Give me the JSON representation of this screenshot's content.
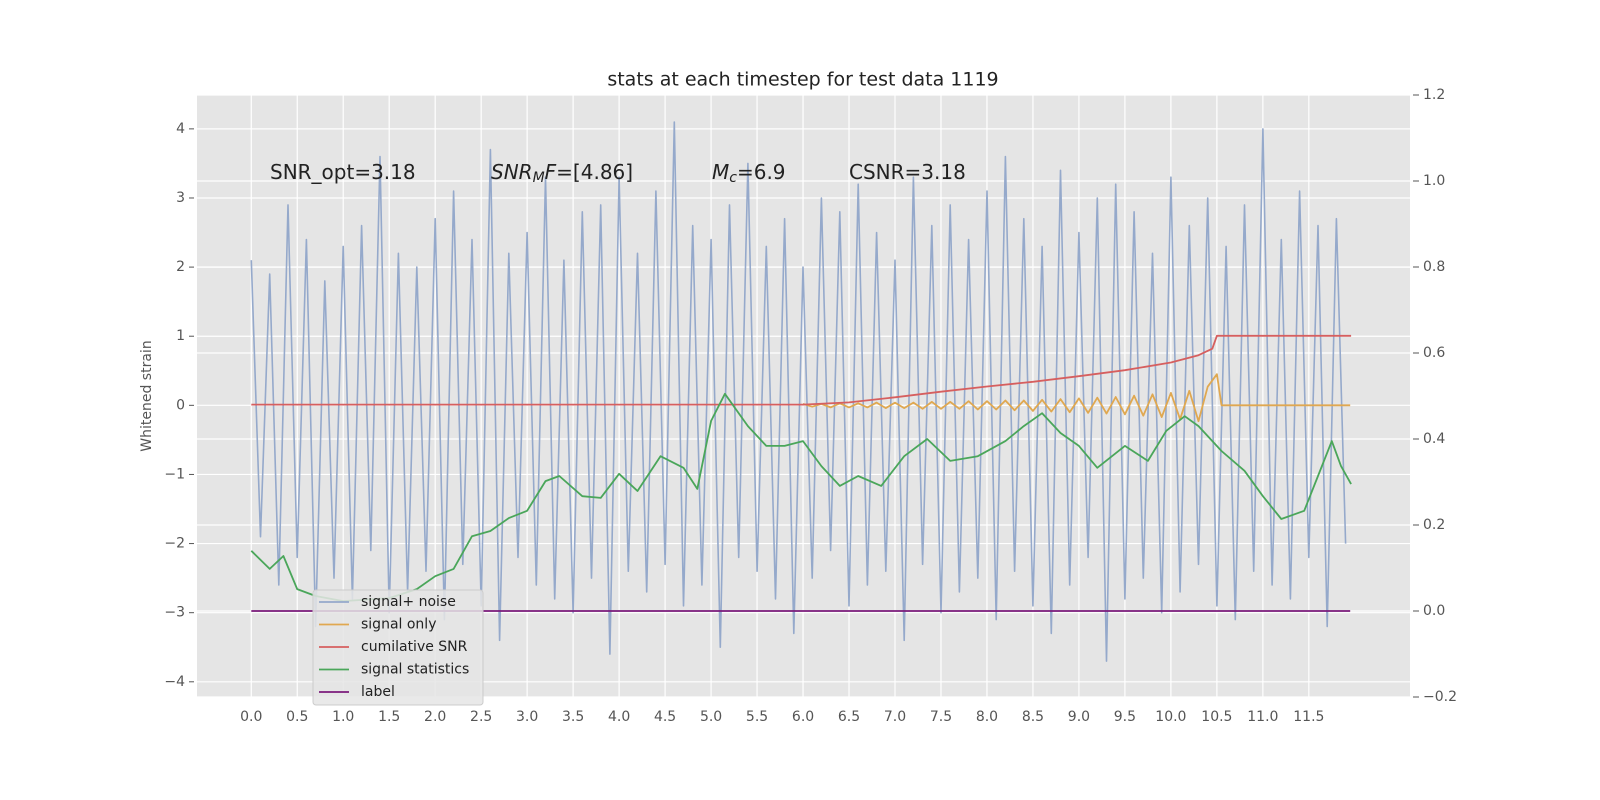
{
  "chart_data": {
    "type": "line",
    "title": "stats at each timestep for test data 1119",
    "ylabel": "Whitened strain",
    "xlim": [
      -0.59,
      12.6
    ],
    "ylim": [
      -4.22,
      4.49
    ],
    "y2lim": [
      -0.2,
      1.2
    ],
    "grid": true,
    "legend": "lower left",
    "xticks": [
      {
        "value": 0,
        "label": "0.0"
      },
      0.5,
      {
        "value": 1,
        "label": "1.0"
      },
      1.5,
      {
        "value": 2,
        "label": "2.0"
      },
      2.5,
      {
        "value": 3,
        "label": "3.0"
      },
      3.5,
      {
        "value": 4,
        "label": "4.0"
      },
      4.5,
      {
        "value": 5,
        "label": "5.0"
      },
      5.5,
      {
        "value": 6,
        "label": "6.0"
      },
      6.5,
      {
        "value": 7,
        "label": "7.0"
      },
      7.5,
      {
        "value": 8,
        "label": "8.0"
      },
      8.5,
      {
        "value": 9,
        "label": "9.0"
      },
      9.5,
      {
        "value": 10,
        "label": "10.0"
      },
      10.5,
      {
        "value": 11,
        "label": "11.0"
      },
      11.5
    ],
    "yticks": [
      {
        "value": -4,
        "label": "−4"
      },
      {
        "value": -3,
        "label": "−3"
      },
      {
        "value": -2,
        "label": "−2"
      },
      {
        "value": -1,
        "label": "−1"
      },
      0,
      1,
      2,
      3,
      4
    ],
    "y2ticks": [
      {
        "value": -0.2,
        "label": "−0.2"
      },
      {
        "value": 0,
        "label": "0.0"
      },
      0.2,
      0.4,
      0.6,
      0.8,
      {
        "value": 1,
        "label": "1.0"
      },
      1.2
    ],
    "annotations": [
      [
        {
          "text": "SNR_opt=3.18",
          "style": "normal"
        }
      ],
      [
        {
          "text": "SNR",
          "style": "italic"
        },
        {
          "text": "M",
          "style": "sub"
        },
        {
          "text": "F",
          "style": "italic"
        },
        {
          "text": "=[4.86]",
          "style": "normal"
        }
      ],
      [
        {
          "text": "M",
          "style": "italic"
        },
        {
          "text": "c",
          "style": "sub"
        },
        {
          "text": "=6.9",
          "style": "normal"
        }
      ],
      [
        {
          "text": "CSNR=3.18",
          "style": "normal"
        }
      ]
    ],
    "series": [
      {
        "name": "signal+ noise",
        "color": "#95a9cb",
        "axis": "y",
        "x": [
          0,
          0.1,
          0.2,
          0.3,
          0.4,
          0.5,
          0.6,
          0.7,
          0.8,
          0.9,
          1,
          1.1,
          1.2,
          1.3,
          1.4,
          1.5,
          1.6,
          1.7,
          1.8,
          1.9,
          2,
          2.1,
          2.2,
          2.3,
          2.4,
          2.5,
          2.6,
          2.7,
          2.8,
          2.9,
          3,
          3.1,
          3.2,
          3.3,
          3.4,
          3.5,
          3.6,
          3.7,
          3.8,
          3.9,
          4,
          4.1,
          4.2,
          4.3,
          4.4,
          4.5,
          4.6,
          4.7,
          4.8,
          4.9,
          5,
          5.1,
          5.2,
          5.3,
          5.4,
          5.5,
          5.6,
          5.7,
          5.8,
          5.9,
          6,
          6.1,
          6.2,
          6.3,
          6.4,
          6.5,
          6.6,
          6.7,
          6.8,
          6.9,
          7,
          7.1,
          7.2,
          7.3,
          7.4,
          7.5,
          7.6,
          7.7,
          7.8,
          7.9,
          8,
          8.1,
          8.2,
          8.3,
          8.4,
          8.5,
          8.6,
          8.7,
          8.8,
          8.9,
          9,
          9.1,
          9.2,
          9.3,
          9.4,
          9.5,
          9.6,
          9.7,
          9.8,
          9.9,
          10,
          10.1,
          10.2,
          10.3,
          10.4,
          10.5,
          10.6,
          10.7,
          10.8,
          10.9,
          11,
          11.1,
          11.2,
          11.3,
          11.4,
          11.5,
          11.6,
          11.7,
          11.8,
          11.9
        ],
        "values": [
          2.1,
          -1.9,
          1.9,
          -2.6,
          2.9,
          -2.2,
          2.4,
          -3.2,
          1.8,
          -2.5,
          2.3,
          -2.8,
          2.6,
          -2.1,
          3.6,
          -3.0,
          2.2,
          -2.7,
          2.0,
          -2.4,
          2.7,
          -3.1,
          3.1,
          -2.3,
          2.4,
          -2.9,
          3.7,
          -3.4,
          2.2,
          -2.2,
          2.5,
          -2.6,
          3.3,
          -2.8,
          2.1,
          -3.0,
          2.8,
          -2.5,
          2.9,
          -3.6,
          3.3,
          -2.4,
          2.2,
          -2.7,
          3.1,
          -2.3,
          4.1,
          -2.9,
          2.6,
          -2.6,
          2.4,
          -3.5,
          2.9,
          -2.2,
          3.5,
          -2.4,
          2.3,
          -2.8,
          2.7,
          -3.3,
          2.0,
          -2.5,
          3.0,
          -2.1,
          2.8,
          -2.9,
          3.2,
          -2.6,
          2.5,
          -2.4,
          2.1,
          -3.4,
          3.3,
          -2.3,
          2.6,
          -3.0,
          2.9,
          -2.7,
          2.4,
          -2.5,
          3.1,
          -3.1,
          3.6,
          -2.4,
          2.7,
          -2.9,
          2.3,
          -3.3,
          3.4,
          -2.6,
          2.5,
          -2.2,
          3.0,
          -3.7,
          3.2,
          -2.8,
          2.8,
          -2.5,
          2.2,
          -3.0,
          3.3,
          -2.7,
          2.6,
          -2.3,
          3.0,
          -2.9,
          2.3,
          -3.1,
          2.9,
          -2.4,
          4.0,
          -2.6,
          2.4,
          -2.8,
          3.1,
          -2.2,
          2.6,
          -3.2,
          2.7,
          -2.0
        ]
      },
      {
        "name": "signal only",
        "color": "#e0a850",
        "axis": "y",
        "x": [
          6,
          6.1,
          6.2,
          6.3,
          6.4,
          6.5,
          6.6,
          6.7,
          6.8,
          6.9,
          7,
          7.1,
          7.2,
          7.3,
          7.4,
          7.5,
          7.6,
          7.7,
          7.8,
          7.9,
          8,
          8.1,
          8.2,
          8.3,
          8.4,
          8.5,
          8.6,
          8.7,
          8.8,
          8.9,
          9,
          9.1,
          9.2,
          9.3,
          9.4,
          9.5,
          9.6,
          9.7,
          9.8,
          9.9,
          10,
          10.1,
          10.2,
          10.3,
          10.4,
          10.5,
          10.55,
          11.95
        ],
        "values": [
          0.02,
          -0.02,
          0.02,
          -0.03,
          0.03,
          -0.03,
          0.03,
          -0.03,
          0.04,
          -0.04,
          0.04,
          -0.04,
          0.04,
          -0.05,
          0.05,
          -0.05,
          0.05,
          -0.05,
          0.06,
          -0.06,
          0.06,
          -0.06,
          0.07,
          -0.07,
          0.07,
          -0.08,
          0.08,
          -0.09,
          0.09,
          -0.1,
          0.1,
          -0.11,
          0.11,
          -0.12,
          0.12,
          -0.13,
          0.14,
          -0.15,
          0.16,
          -0.17,
          0.18,
          -0.2,
          0.21,
          -0.23,
          0.27,
          0.45,
          0,
          0
        ]
      },
      {
        "name": "cumilative SNR",
        "color": "#d65f5f",
        "axis": "y2",
        "x": [
          0,
          6,
          6.5,
          7,
          7.5,
          8,
          8.5,
          9,
          9.5,
          10,
          10.3,
          10.45,
          10.5,
          11.96
        ],
        "values": [
          0.48,
          0.48,
          0.485,
          0.497,
          0.51,
          0.522,
          0.533,
          0.546,
          0.56,
          0.578,
          0.595,
          0.61,
          0.64,
          0.64
        ]
      },
      {
        "name": "signal statistics",
        "color": "#4aa65a",
        "axis": "y2",
        "x": [
          0,
          0.2,
          0.35,
          0.5,
          0.7,
          1,
          1.5,
          1.8,
          2,
          2.2,
          2.4,
          2.6,
          2.8,
          3,
          3.2,
          3.35,
          3.6,
          3.8,
          4,
          4.2,
          4.45,
          4.7,
          4.85,
          5,
          5.15,
          5.4,
          5.6,
          5.8,
          6,
          6.2,
          6.4,
          6.6,
          6.85,
          7.1,
          7.35,
          7.6,
          7.9,
          8.2,
          8.4,
          8.6,
          8.8,
          9,
          9.2,
          9.5,
          9.75,
          9.95,
          10.15,
          10.3,
          10.55,
          10.8,
          11,
          11.2,
          11.45,
          11.6,
          11.75,
          11.85,
          11.96
        ],
        "values": [
          0.14,
          0.098,
          0.128,
          0.051,
          0.035,
          0.023,
          0.03,
          0.051,
          0.081,
          0.098,
          0.174,
          0.186,
          0.216,
          0.233,
          0.302,
          0.314,
          0.267,
          0.263,
          0.319,
          0.279,
          0.36,
          0.333,
          0.284,
          0.442,
          0.505,
          0.43,
          0.384,
          0.384,
          0.395,
          0.337,
          0.291,
          0.314,
          0.291,
          0.36,
          0.4,
          0.349,
          0.36,
          0.395,
          0.43,
          0.46,
          0.414,
          0.384,
          0.333,
          0.384,
          0.349,
          0.419,
          0.453,
          0.43,
          0.372,
          0.326,
          0.267,
          0.214,
          0.233,
          0.314,
          0.395,
          0.337,
          0.295
        ]
      },
      {
        "name": "label",
        "color": "#7a1a7a",
        "axis": "y2",
        "x": [
          0,
          11.95
        ],
        "values": [
          0,
          0
        ]
      }
    ]
  }
}
